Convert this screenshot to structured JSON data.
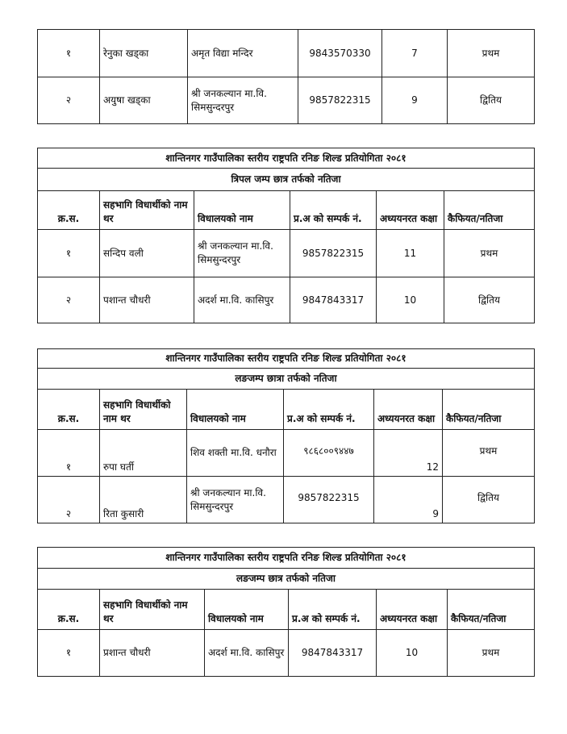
{
  "tables": [
    {
      "title": "",
      "subtitle": "",
      "headers": [],
      "rows": [
        [
          "१",
          "रेनुका खड्का",
          "अमृत विद्या मन्दिर",
          "9843570330",
          "7",
          "प्रथम"
        ],
        [
          "२",
          "अयुषा खड्का",
          "श्री जनकल्यान मा.वि. सिमसुन्दरपुर",
          "9857822315",
          "9",
          "द्वितिय"
        ]
      ]
    },
    {
      "title": "शान्तिनगर गाउँपालिका स्तरीय राष्ट्रपति रनिङ शिल्ड प्रतियोगिता २०८१",
      "subtitle": "त्रिपल जम्प छात्र तर्फको नतिजा",
      "headers": [
        "क्र.स.",
        "सहभागि विधार्थीको नाम थर",
        "विधालयको नाम",
        "प्र.अ को सम्पर्क नं.",
        "अध्ययनरत कक्षा",
        "कैफियत/नतिजा"
      ],
      "rows": [
        [
          "१",
          "सन्दिप वली",
          "श्री जनकल्यान मा.वि. सिमसुन्दरपुर",
          "9857822315",
          "11",
          "प्रथम"
        ],
        [
          "२",
          "पशान्त चौधरी",
          "अदर्श मा.वि. कासिपुर",
          "9847843317",
          "10",
          "द्वितिय"
        ]
      ]
    },
    {
      "title": "शान्तिनगर गाउँपालिका स्तरीय राष्ट्रपति रनिङ शिल्ड प्रतियोगिता २०८१",
      "subtitle": "लङजम्प छात्रा तर्फको नतिजा",
      "headers": [
        "क्र.स.",
        "सहभागि विधार्थीको नाम थर",
        "विधालयको नाम",
        "प्र.अ को सम्पर्क नं.",
        "अध्ययनरत कक्षा",
        "कैफियत/नतिजा"
      ],
      "rows": [
        [
          "१",
          "रुपा घर्ती",
          "शिव शक्ती मा.वि. धनौरा",
          "९८६८००९४४७",
          "12",
          "प्रथम"
        ],
        [
          "२",
          "रिता कुसारी",
          "श्री जनकल्यान मा.वि. सिमसुन्दरपुर",
          "9857822315",
          "9",
          "द्वितिय"
        ]
      ]
    },
    {
      "title": "शान्तिनगर गाउँपालिका स्तरीय राष्ट्रपति रनिङ शिल्ड प्रतियोगिता २०८१",
      "subtitle": "लङजम्प छात्र तर्फको नतिजा",
      "headers": [
        "क्र.स.",
        "सहभागि विधार्थीको नाम थर",
        "विधालयको नाम",
        "प्र.अ को सम्पर्क नं.",
        "अध्ययनरत कक्षा",
        "कैफियत/नतिजा"
      ],
      "rows": [
        [
          "१",
          "प्रशान्त चौधरी",
          "अदर्श मा.वि. कासिपुर",
          "9847843317",
          "10",
          "प्रथम"
        ]
      ]
    }
  ]
}
